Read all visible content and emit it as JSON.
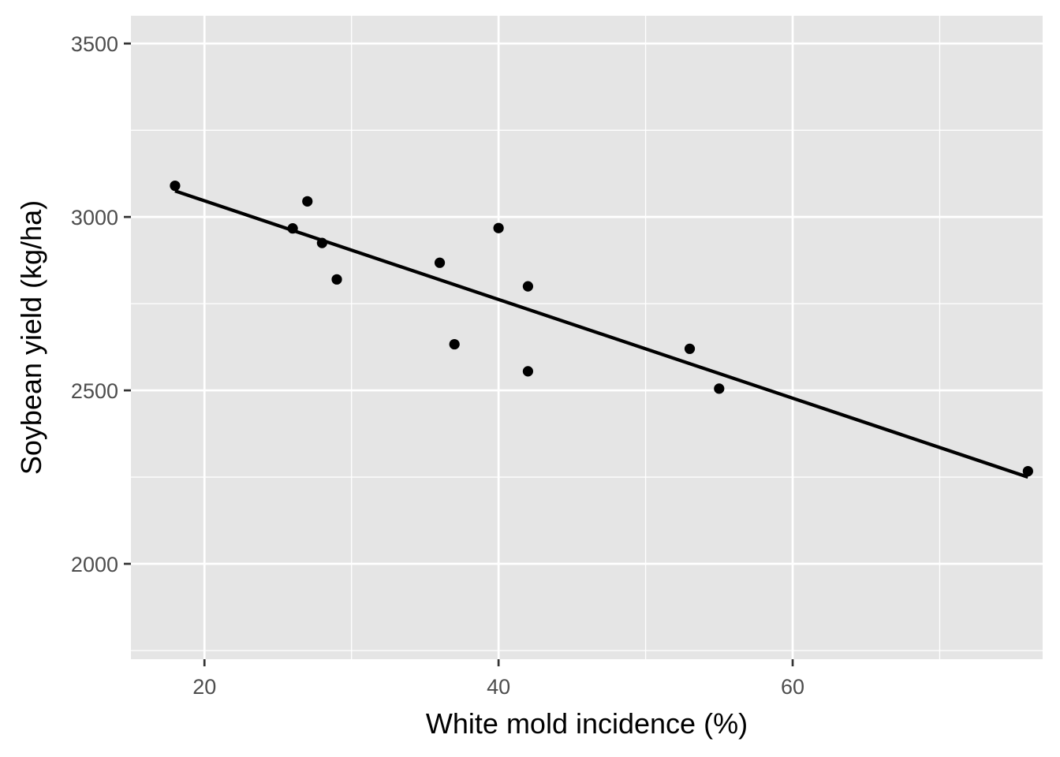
{
  "chart_data": {
    "type": "scatter",
    "title": "",
    "xlabel": "White mold incidence (%)",
    "ylabel": "Soybean yield (kg/ha)",
    "xlim": [
      15,
      77
    ],
    "ylim": [
      1725,
      3580
    ],
    "x_ticks": [
      20,
      40,
      60
    ],
    "x_minor_ticks": [
      30,
      50,
      70
    ],
    "y_ticks": [
      2000,
      2500,
      3000,
      3500
    ],
    "y_minor_ticks": [
      1750,
      2250,
      2750,
      3250
    ],
    "x_tick_labels": [
      "20",
      "40",
      "60"
    ],
    "y_tick_labels": [
      "2000",
      "2500",
      "3000",
      "3500"
    ],
    "grid": true,
    "legend": "none",
    "colors": {
      "panel_background": "#e5e5e5",
      "grid": "#ffffff",
      "points": "#000000",
      "line": "#000000"
    },
    "points": [
      {
        "x": 18,
        "y": 3090
      },
      {
        "x": 26,
        "y": 2967
      },
      {
        "x": 27,
        "y": 3045
      },
      {
        "x": 28,
        "y": 2925
      },
      {
        "x": 29,
        "y": 2820
      },
      {
        "x": 36,
        "y": 2868
      },
      {
        "x": 37,
        "y": 2633
      },
      {
        "x": 40,
        "y": 2968
      },
      {
        "x": 42,
        "y": 2800
      },
      {
        "x": 42,
        "y": 2555
      },
      {
        "x": 53,
        "y": 2620
      },
      {
        "x": 55,
        "y": 2505
      },
      {
        "x": 76,
        "y": 2267
      }
    ],
    "fit_line": {
      "type": "linear",
      "x": [
        18,
        76
      ],
      "y": [
        3075,
        2250
      ]
    }
  }
}
